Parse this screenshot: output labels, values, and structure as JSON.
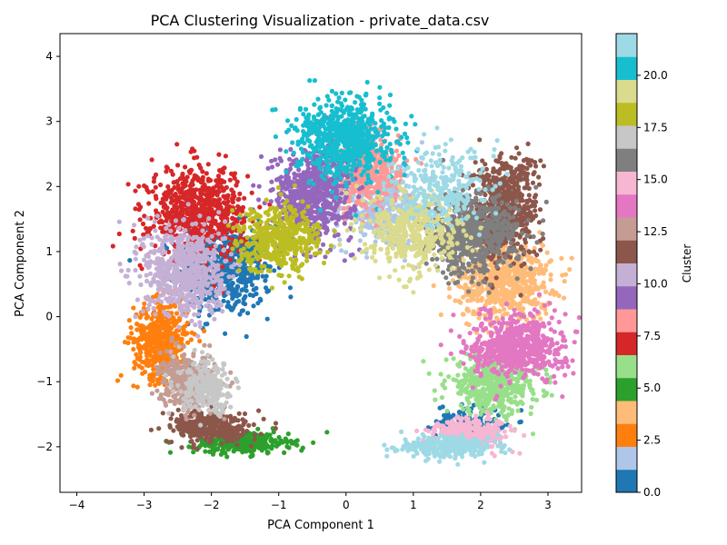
{
  "chart_data": {
    "type": "scatter",
    "title": "PCA Clustering Visualization - private_data.csv",
    "xlabel": "PCA Component 1",
    "ylabel": "PCA Component 2",
    "xlim": [
      -4.25,
      3.5
    ],
    "ylim": [
      -2.7,
      4.35
    ],
    "x_ticks": [
      -4,
      -3,
      -2,
      -1,
      0,
      1,
      2,
      3
    ],
    "y_ticks": [
      -2,
      -1,
      0,
      1,
      2,
      3,
      4
    ],
    "grid": false,
    "colorbar": {
      "label": "Cluster",
      "range": [
        0,
        22
      ],
      "ticks": [
        0.0,
        2.5,
        5.0,
        7.5,
        10.0,
        12.5,
        15.0,
        17.5,
        20.0
      ],
      "tick_labels": [
        "0.0",
        "2.5",
        "5.0",
        "7.5",
        "10.0",
        "12.5",
        "15.0",
        "17.5",
        "20.0"
      ],
      "colormap": "tab20",
      "colors": [
        "#1f77b4",
        "#aec7e8",
        "#ff7f0e",
        "#ffbb78",
        "#2ca02c",
        "#98df8a",
        "#d62728",
        "#ff9896",
        "#9467bd",
        "#c5b0d5",
        "#8c564b",
        "#c49c94",
        "#e377c2",
        "#f7b6d2",
        "#7f7f7f",
        "#c7c7c7",
        "#bcbd22",
        "#dbdb8d",
        "#17becf",
        "#9edae5"
      ]
    },
    "clusters": [
      {
        "id": 0,
        "color": "#1f77b4",
        "center": [
          -1.8,
          0.7
        ],
        "spread": [
          0.35,
          0.35
        ],
        "n": 520
      },
      {
        "id": 0,
        "color": "#1f77b4",
        "center": [
          1.85,
          -1.6
        ],
        "spread": [
          0.25,
          0.12
        ],
        "n": 120
      },
      {
        "id": 1,
        "color": "#aec7e8",
        "center": [
          0.55,
          1.65
        ],
        "spread": [
          0.35,
          0.3
        ],
        "n": 420
      },
      {
        "id": 2,
        "color": "#ff7f0e",
        "center": [
          -2.75,
          -0.35
        ],
        "spread": [
          0.2,
          0.3
        ],
        "n": 500
      },
      {
        "id": 3,
        "color": "#ffbb78",
        "center": [
          2.35,
          0.55
        ],
        "spread": [
          0.35,
          0.3
        ],
        "n": 650
      },
      {
        "id": 4,
        "color": "#2ca02c",
        "center": [
          -1.55,
          -1.95
        ],
        "spread": [
          0.35,
          0.08
        ],
        "n": 300
      },
      {
        "id": 5,
        "color": "#98df8a",
        "center": [
          2.2,
          -1.05
        ],
        "spread": [
          0.35,
          0.22
        ],
        "n": 480
      },
      {
        "id": 6,
        "color": "#d62728",
        "center": [
          -2.2,
          1.6
        ],
        "spread": [
          0.35,
          0.35
        ],
        "n": 700
      },
      {
        "id": 7,
        "color": "#ff9896",
        "center": [
          0.3,
          2.25
        ],
        "spread": [
          0.25,
          0.3
        ],
        "n": 420
      },
      {
        "id": 8,
        "color": "#9467bd",
        "center": [
          -0.5,
          1.9
        ],
        "spread": [
          0.3,
          0.35
        ],
        "n": 600
      },
      {
        "id": 9,
        "color": "#c5b0d5",
        "center": [
          -2.4,
          0.7
        ],
        "spread": [
          0.3,
          0.35
        ],
        "n": 650
      },
      {
        "id": 10,
        "color": "#8c564b",
        "center": [
          2.35,
          1.7
        ],
        "spread": [
          0.25,
          0.4
        ],
        "n": 600
      },
      {
        "id": 10,
        "color": "#8c564b",
        "center": [
          -2.0,
          -1.7
        ],
        "spread": [
          0.3,
          0.12
        ],
        "n": 350
      },
      {
        "id": 11,
        "color": "#c49c94",
        "center": [
          -2.35,
          -1.0
        ],
        "spread": [
          0.2,
          0.2
        ],
        "n": 350
      },
      {
        "id": 12,
        "color": "#e377c2",
        "center": [
          2.55,
          -0.45
        ],
        "spread": [
          0.35,
          0.25
        ],
        "n": 600
      },
      {
        "id": 13,
        "color": "#f7b6d2",
        "center": [
          1.85,
          -1.8
        ],
        "spread": [
          0.3,
          0.12
        ],
        "n": 350
      },
      {
        "id": 14,
        "color": "#7f7f7f",
        "center": [
          1.85,
          1.25
        ],
        "spread": [
          0.35,
          0.3
        ],
        "n": 650
      },
      {
        "id": 15,
        "color": "#c7c7c7",
        "center": [
          -2.05,
          -1.1
        ],
        "spread": [
          0.2,
          0.2
        ],
        "n": 250
      },
      {
        "id": 16,
        "color": "#bcbd22",
        "center": [
          -1.0,
          1.2
        ],
        "spread": [
          0.3,
          0.25
        ],
        "n": 450
      },
      {
        "id": 17,
        "color": "#dbdb8d",
        "center": [
          1.0,
          1.3
        ],
        "spread": [
          0.35,
          0.3
        ],
        "n": 420
      },
      {
        "id": 18,
        "color": "#17becf",
        "center": [
          0.0,
          2.75
        ],
        "spread": [
          0.35,
          0.3
        ],
        "n": 700
      },
      {
        "id": 19,
        "color": "#9edae5",
        "center": [
          1.5,
          -2.0
        ],
        "spread": [
          0.35,
          0.08
        ],
        "n": 300
      },
      {
        "id": 19,
        "color": "#9edae5",
        "center": [
          1.4,
          2.0
        ],
        "spread": [
          0.35,
          0.3
        ],
        "n": 250
      }
    ]
  }
}
